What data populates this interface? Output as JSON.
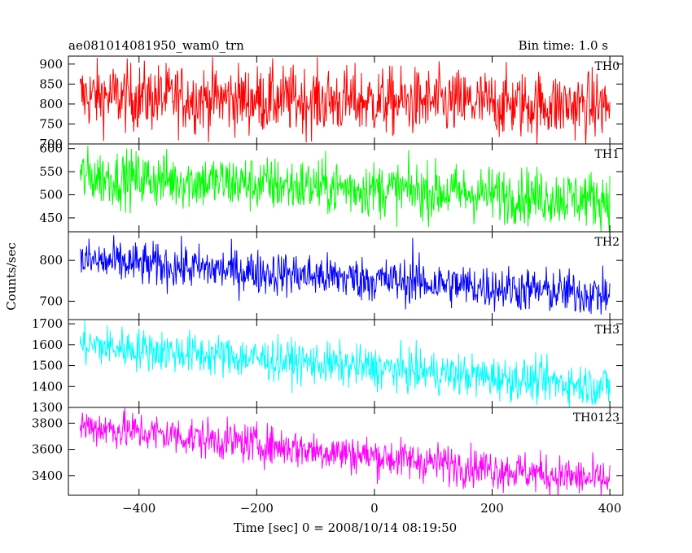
{
  "header": {
    "title": "ae081014081950_wam0_trn",
    "bin_time": "Bin time: 1.0 s"
  },
  "chart_data": [
    {
      "type": "line",
      "label": "TH0",
      "color": "#ff0000",
      "ylim": [
        700,
        920
      ],
      "yticks": [
        700,
        750,
        800,
        850,
        900
      ],
      "x_range": [
        -500,
        400
      ],
      "trend": {
        "start": 820,
        "end": 795
      },
      "noise_sd": 42,
      "ylabel": "Counts/sec"
    },
    {
      "type": "line",
      "label": "TH1",
      "color": "#00ff00",
      "ylim": [
        420,
        610
      ],
      "yticks": [
        450,
        500,
        550,
        600
      ],
      "x_range": [
        -500,
        400
      ],
      "trend": {
        "start": 540,
        "end": 490
      },
      "noise_sd": 30,
      "ylabel": "Counts/sec"
    },
    {
      "type": "line",
      "label": "TH2",
      "color": "#0000ff",
      "ylim": [
        655,
        870
      ],
      "yticks": [
        700,
        800
      ],
      "x_range": [
        -500,
        400
      ],
      "trend": {
        "start": 800,
        "end": 715
      },
      "noise_sd": 27,
      "spike": {
        "x": 65,
        "value": 855
      },
      "ylabel": "Counts/sec"
    },
    {
      "type": "line",
      "label": "TH3",
      "color": "#00ffff",
      "ylim": [
        1300,
        1720
      ],
      "yticks": [
        1300,
        1400,
        1500,
        1600,
        1700
      ],
      "x_range": [
        -500,
        400
      ],
      "trend": {
        "start": 1600,
        "end": 1400
      },
      "noise_sd": 50,
      "ylabel": "Counts/sec"
    },
    {
      "type": "line",
      "label": "TH0123",
      "color": "#ff00ff",
      "ylim": [
        3250,
        3920
      ],
      "yticks": [
        3400,
        3600,
        3800
      ],
      "x_range": [
        -500,
        400
      ],
      "trend": {
        "start": 3780,
        "end": 3360
      },
      "noise_sd": 75,
      "ylabel": "Counts/sec"
    }
  ],
  "axes": {
    "ylabel": "Counts/sec",
    "xlabel": "Time [sec] 0 = 2008/10/14 08:19:50",
    "xlim": [
      -520,
      422
    ],
    "xticks": [
      -400,
      -200,
      0,
      200,
      400
    ],
    "xtick_labels": [
      "−400",
      "−200",
      "0",
      "200",
      "400"
    ]
  }
}
